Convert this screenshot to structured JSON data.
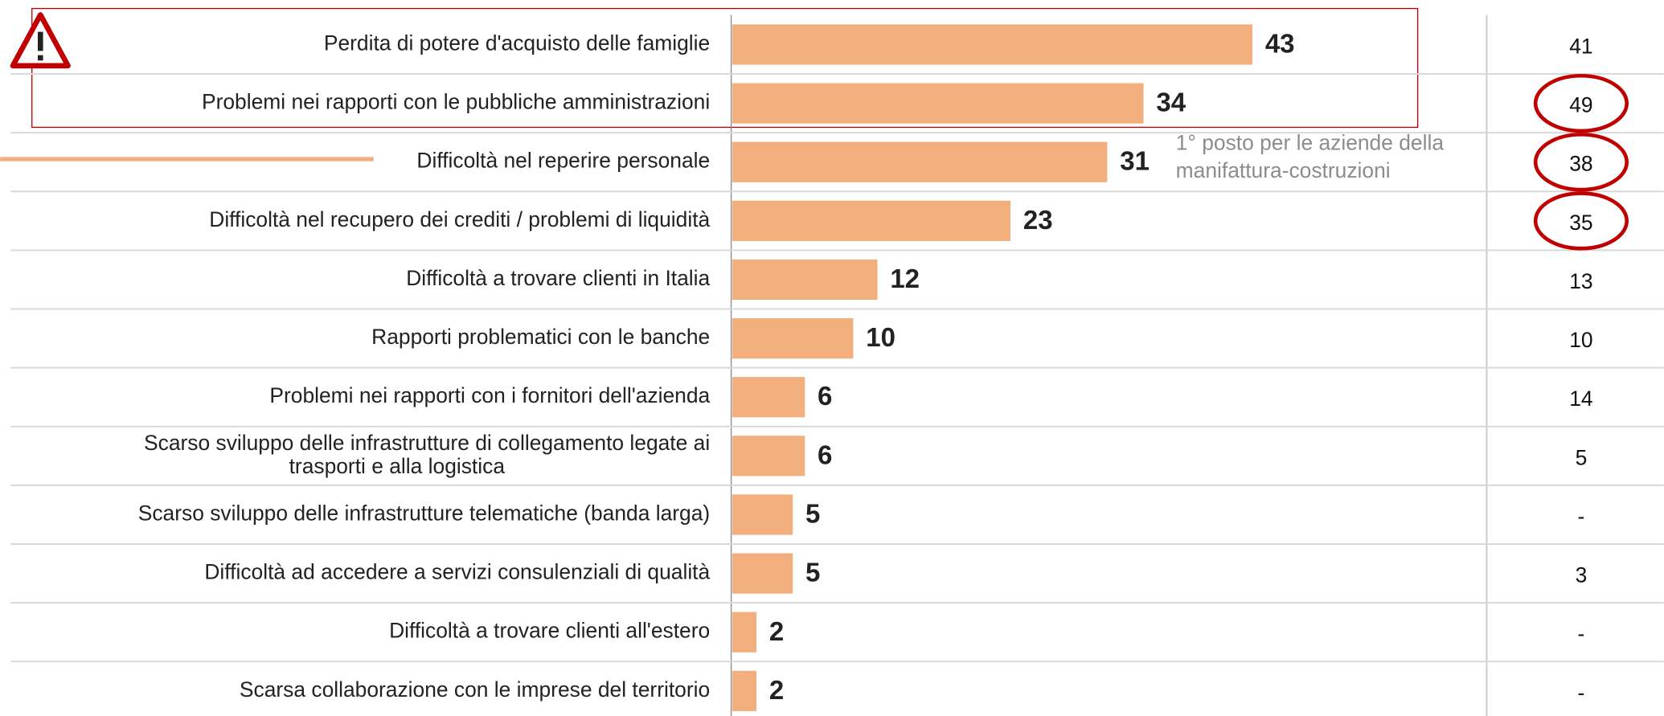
{
  "chart_data": {
    "type": "bar",
    "orientation": "horizontal",
    "categories": [
      "Perdita di potere d'acquisto delle famiglie",
      "Problemi nei rapporti con le pubbliche amministrazioni",
      "Difficoltà nel reperire personale",
      "Difficoltà nel recupero dei crediti / problemi di liquidità",
      "Difficoltà a trovare clienti in Italia",
      "Rapporti problematici con le banche",
      "Problemi nei rapporti con i fornitori dell'azienda",
      "Scarso sviluppo delle infrastrutture di collegamento legate ai\ntrasporti e alla logistica",
      "Scarso sviluppo delle infrastrutture telematiche (banda larga)",
      "Difficoltà ad accedere a servizi consulenziali di qualità",
      "Difficoltà a trovare clienti all'estero",
      "Scarsa collaborazione con le imprese del territorio"
    ],
    "values": [
      43,
      34,
      31,
      23,
      12,
      10,
      6,
      6,
      5,
      5,
      2,
      2
    ],
    "color": "#f2ae7c",
    "xlim": [
      0,
      60
    ],
    "comparison": [
      41,
      49,
      38,
      35,
      13,
      10,
      14,
      5,
      "-",
      3,
      "-",
      "-"
    ],
    "highlighted": [
      1,
      2,
      3
    ],
    "highlight_color": "#c00000",
    "annotation": [
      "1° posto per le aziende della",
      "manifattura-costruzioni"
    ]
  }
}
